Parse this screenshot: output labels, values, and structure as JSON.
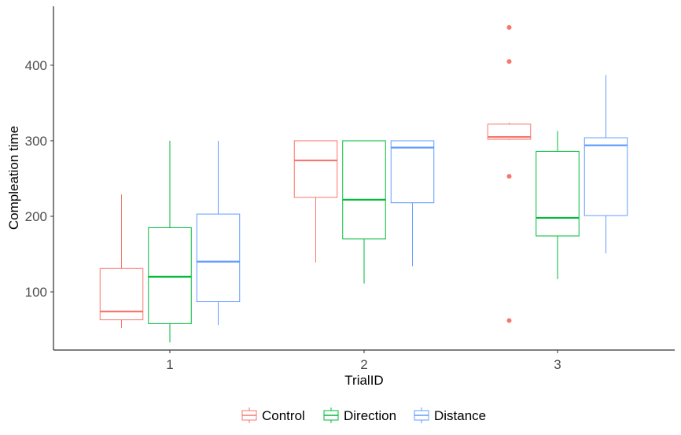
{
  "chart_data": {
    "type": "boxplot",
    "title": "",
    "xlabel": "TrialID",
    "ylabel": "Compleation time",
    "categories": [
      "1",
      "2",
      "3"
    ],
    "ylim": [
      23,
      478
    ],
    "yticks": [
      100,
      200,
      300,
      400
    ],
    "grid": false,
    "legend_position": "bottom",
    "series": [
      {
        "name": "Control",
        "color": "#F8766D",
        "boxes": [
          {
            "category": "1",
            "min": 52,
            "q1": 63,
            "median": 74,
            "q3": 131,
            "max": 229,
            "outliers": []
          },
          {
            "category": "2",
            "min": 139,
            "q1": 225,
            "median": 274,
            "q3": 300,
            "max": 300,
            "outliers": []
          },
          {
            "category": "3",
            "min": 301,
            "q1": 302,
            "median": 305,
            "q3": 322,
            "max": 324,
            "outliers": [
              450,
              405,
              253,
              62
            ]
          }
        ]
      },
      {
        "name": "Direction",
        "color": "#00BA38",
        "boxes": [
          {
            "category": "1",
            "min": 33,
            "q1": 58,
            "median": 120,
            "q3": 185,
            "max": 300,
            "outliers": []
          },
          {
            "category": "2",
            "min": 111,
            "q1": 170,
            "median": 222,
            "q3": 300,
            "max": 300,
            "outliers": []
          },
          {
            "category": "3",
            "min": 117,
            "q1": 174,
            "median": 198,
            "q3": 286,
            "max": 313,
            "outliers": []
          }
        ]
      },
      {
        "name": "Distance",
        "color": "#619CFF",
        "boxes": [
          {
            "category": "1",
            "min": 56,
            "q1": 87,
            "median": 140,
            "q3": 203,
            "max": 300,
            "outliers": []
          },
          {
            "category": "2",
            "min": 134,
            "q1": 218,
            "median": 291,
            "q3": 300,
            "max": 300,
            "outliers": []
          },
          {
            "category": "3",
            "min": 151,
            "q1": 201,
            "median": 294,
            "q3": 304,
            "max": 387,
            "outliers": []
          }
        ]
      }
    ]
  }
}
